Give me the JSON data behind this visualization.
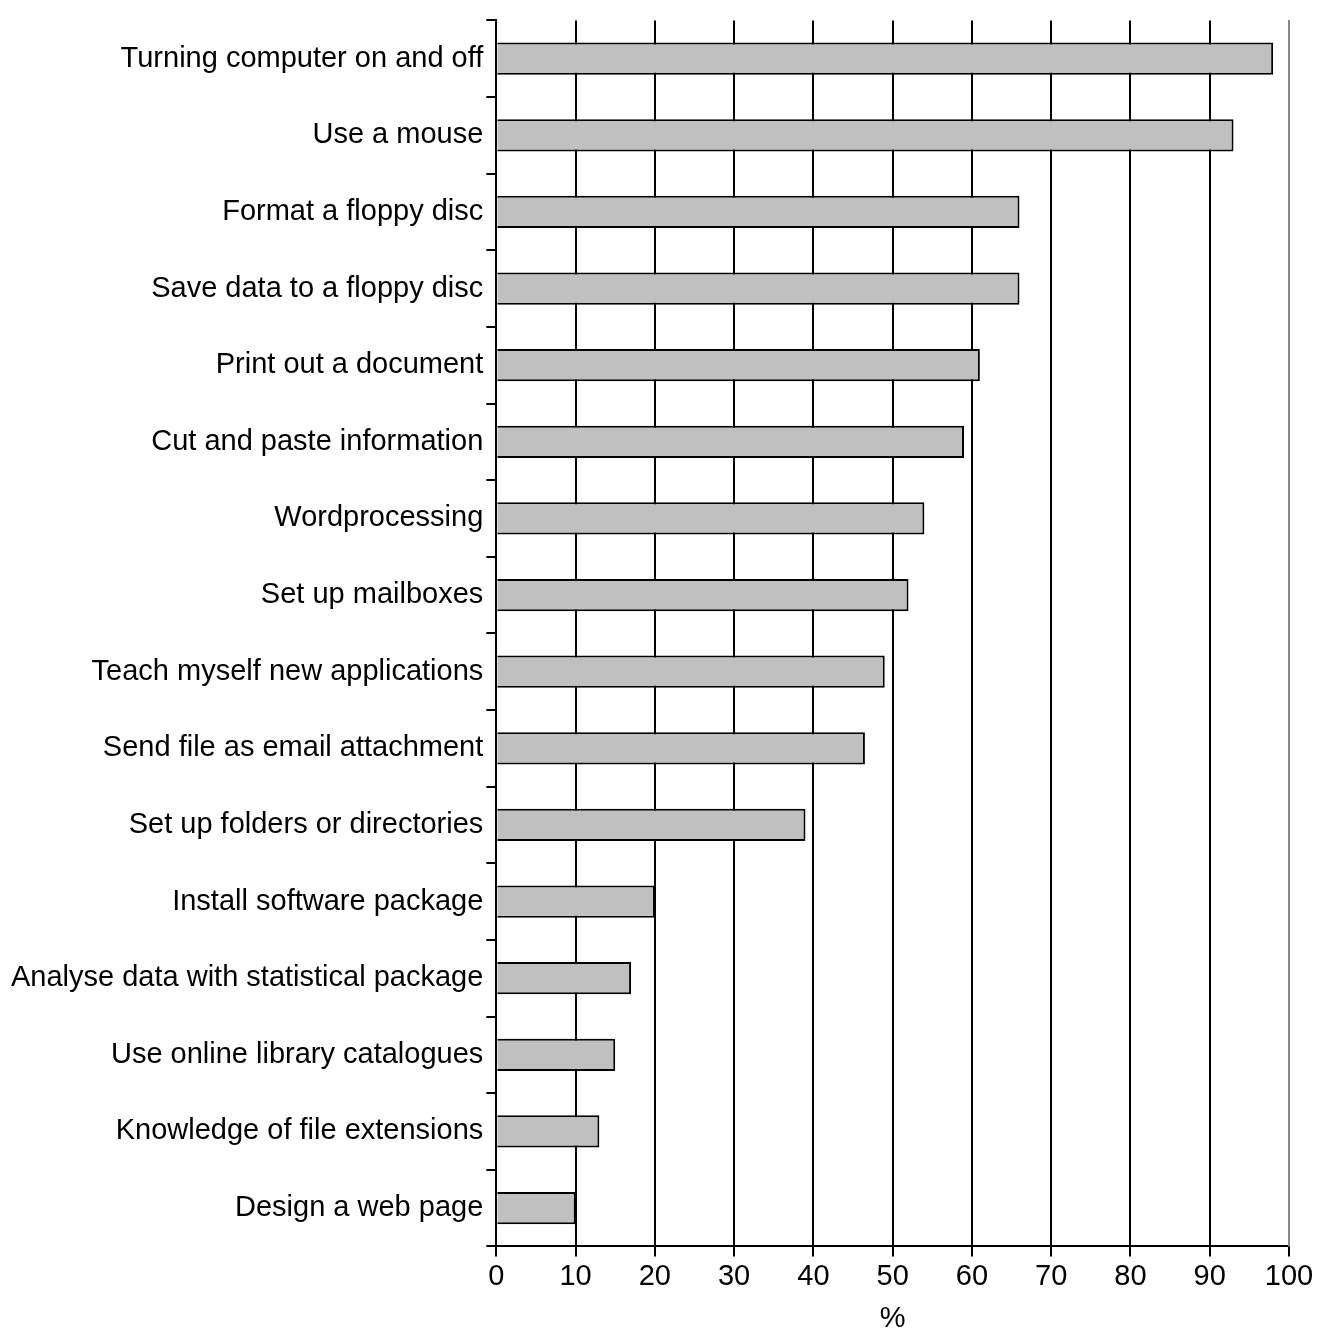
{
  "chart_data": {
    "type": "bar",
    "orientation": "horizontal",
    "xlabel": "%",
    "categories": [
      "Turning computer on and off",
      "Use a mouse",
      "Format a floppy disc",
      "Save data to a floppy disc",
      "Print out a document",
      "Cut and paste information",
      "Wordprocessing",
      "Set up mailboxes",
      "Teach myself new applications",
      "Send file as email attachment",
      "Set up folders or directories",
      "Install software package",
      "Analyse data with statistical package",
      "Use online library catalogues",
      "Knowledge of file extensions",
      "Design a web page"
    ],
    "values": [
      98,
      93,
      66,
      66,
      61,
      59,
      54,
      52,
      49,
      46.5,
      39,
      20,
      17,
      15,
      13,
      10
    ],
    "color": "#c0c0c0",
    "xlim": [
      0,
      100
    ],
    "xticks": [
      0,
      10,
      20,
      30,
      40,
      50,
      60,
      70,
      80,
      90,
      100
    ],
    "grid": "x"
  }
}
